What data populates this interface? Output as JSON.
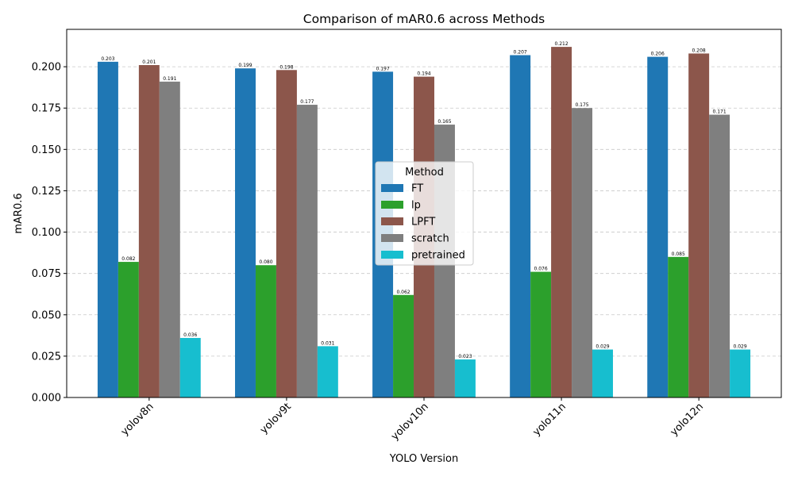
{
  "chart_data": {
    "type": "bar",
    "title": "Comparison of mAR0.6 across Methods",
    "xlabel": "YOLO Version",
    "ylabel": "mAR0.6",
    "categories": [
      "yolov8n",
      "yolov9t",
      "yolov10n",
      "yolo11n",
      "yolo12n"
    ],
    "series": [
      {
        "name": "FT",
        "color": "#1f77b4",
        "values": [
          0.203,
          0.199,
          0.197,
          0.207,
          0.206
        ]
      },
      {
        "name": "lp",
        "color": "#2ca02c",
        "values": [
          0.082,
          0.08,
          0.062,
          0.076,
          0.085
        ]
      },
      {
        "name": "LPFT",
        "color": "#8c564b",
        "values": [
          0.201,
          0.198,
          0.194,
          0.212,
          0.208
        ]
      },
      {
        "name": "scratch",
        "color": "#7f7f7f",
        "values": [
          0.191,
          0.177,
          0.165,
          0.175,
          0.171
        ]
      },
      {
        "name": "pretrained",
        "color": "#17becf",
        "values": [
          0.036,
          0.031,
          0.023,
          0.029,
          0.029
        ]
      }
    ],
    "ylim": [
      0,
      0.2226
    ],
    "yticks": [
      "0.000",
      "0.025",
      "0.050",
      "0.075",
      "0.100",
      "0.125",
      "0.150",
      "0.175",
      "0.200"
    ],
    "grid": "y-dashed",
    "legend": {
      "title": "Method",
      "placement": "center"
    },
    "x_tick_rotation": 45
  }
}
